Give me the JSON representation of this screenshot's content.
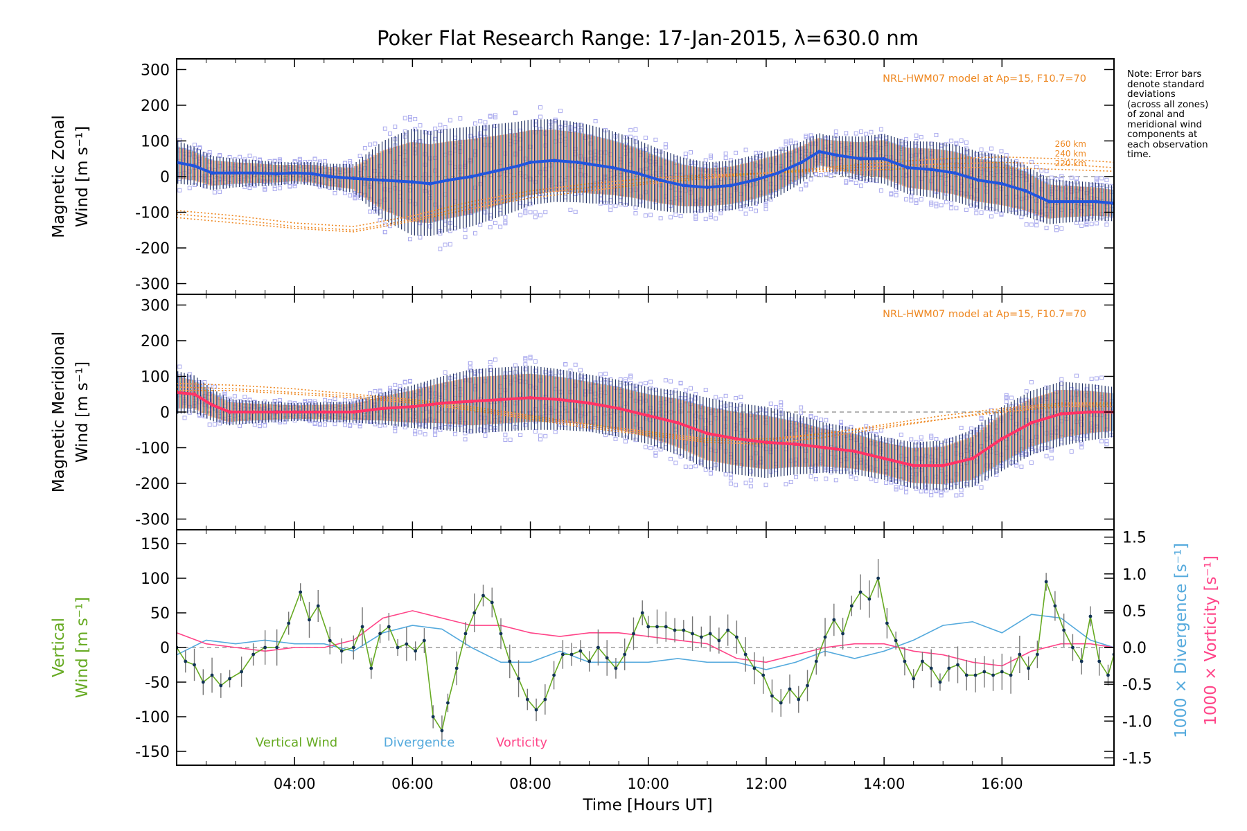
{
  "title": "Poker Flat Research Range: 17-Jan-2015, λ=630.0 nm",
  "note": [
    "Note: Error bars",
    "denote standard",
    "deviations",
    "(across all zones)",
    "of zonal and",
    "meridional wind",
    "components at",
    "each observation",
    "time."
  ],
  "xaxis": {
    "label": "Time [Hours UT]",
    "range_hours": [
      2.0,
      17.9
    ],
    "ticks": [
      {
        "v": 4,
        "label": "04:00"
      },
      {
        "v": 6,
        "label": "06:00"
      },
      {
        "v": 8,
        "label": "08:00"
      },
      {
        "v": 10,
        "label": "10:00"
      },
      {
        "v": 12,
        "label": "12:00"
      },
      {
        "v": 14,
        "label": "14:00"
      },
      {
        "v": 16,
        "label": "16:00"
      }
    ]
  },
  "colors": {
    "zonal": "#2255dd",
    "meridional": "#ff3366",
    "vertical": "#66aa22",
    "divergence": "#55aadd",
    "vorticity": "#ff4488",
    "hwm": "#ee8822",
    "raw_points": "#aaaaee",
    "errorbar": "#223366"
  },
  "chart_data": [
    {
      "type": "line",
      "panel": "zonal",
      "ylabel_lines": [
        "Magnetic Zonal",
        "Wind [m s⁻¹]"
      ],
      "ylim": [
        -330,
        330
      ],
      "yticks": [
        300,
        200,
        100,
        0,
        -100,
        -200,
        -300
      ],
      "hwm_label": "NRL-HWM07 model at Ap=15, F10.7=70",
      "hwm_alt_labels": [
        "260 km",
        "240 km",
        "220 km"
      ],
      "series": [
        {
          "role": "mean",
          "x": [
            2.0,
            2.3,
            2.6,
            2.9,
            3.3,
            3.7,
            4.0,
            4.3,
            4.6,
            5.0,
            5.5,
            6.0,
            6.3,
            6.6,
            7.0,
            7.4,
            7.8,
            8.0,
            8.4,
            8.8,
            9.0,
            9.4,
            9.8,
            10.2,
            10.6,
            11.0,
            11.4,
            11.8,
            12.2,
            12.6,
            12.9,
            13.2,
            13.6,
            14.0,
            14.4,
            14.8,
            15.2,
            15.6,
            16.0,
            16.4,
            16.8,
            17.2,
            17.6,
            17.9
          ],
          "y": [
            40,
            30,
            10,
            10,
            10,
            8,
            10,
            8,
            0,
            -5,
            -10,
            -15,
            -20,
            -10,
            0,
            15,
            30,
            40,
            45,
            40,
            35,
            25,
            10,
            -10,
            -25,
            -30,
            -25,
            -10,
            10,
            40,
            70,
            60,
            50,
            50,
            25,
            20,
            10,
            -10,
            -20,
            -40,
            -70,
            -70,
            -70,
            -75
          ]
        },
        {
          "role": "std_dev",
          "x": [
            2.0,
            3.0,
            4.0,
            5.0,
            5.5,
            6.0,
            7.0,
            8.0,
            9.0,
            10.0,
            11.0,
            12.0,
            13.0,
            14.0,
            15.0,
            16.0,
            17.0,
            17.9
          ],
          "sd": [
            60,
            40,
            30,
            40,
            110,
            150,
            140,
            120,
            110,
            90,
            70,
            70,
            50,
            70,
            80,
            80,
            60,
            50
          ]
        }
      ],
      "hwm_model": [
        {
          "altitude": "220 km",
          "x": [
            2,
            3,
            4,
            5,
            6,
            7,
            8,
            9,
            10,
            11,
            12,
            13,
            14,
            15,
            16,
            17,
            17.9
          ],
          "y": [
            -95,
            -110,
            -130,
            -140,
            -110,
            -70,
            -40,
            -20,
            -5,
            5,
            10,
            15,
            20,
            25,
            25,
            20,
            15
          ]
        },
        {
          "altitude": "240 km",
          "x": [
            2,
            3,
            4,
            5,
            6,
            7,
            8,
            9,
            10,
            11,
            12,
            13,
            14,
            15,
            16,
            17,
            17.9
          ],
          "y": [
            -105,
            -120,
            -140,
            -150,
            -120,
            -80,
            -50,
            -30,
            -15,
            0,
            10,
            20,
            30,
            35,
            40,
            35,
            25
          ]
        },
        {
          "altitude": "260 km",
          "x": [
            2,
            3,
            4,
            5,
            6,
            7,
            8,
            9,
            10,
            11,
            12,
            13,
            14,
            15,
            16,
            17,
            17.9
          ],
          "y": [
            -115,
            -130,
            -145,
            -155,
            -125,
            -90,
            -60,
            -40,
            -20,
            -5,
            10,
            25,
            40,
            50,
            55,
            50,
            40
          ]
        }
      ]
    },
    {
      "type": "line",
      "panel": "meridional",
      "ylabel_lines": [
        "Magnetic Meridional",
        "Wind [m s⁻¹]"
      ],
      "ylim": [
        -330,
        330
      ],
      "yticks": [
        300,
        200,
        100,
        0,
        -100,
        -200,
        -300
      ],
      "hwm_label": "NRL-HWM07 model at Ap=15, F10.7=70",
      "series": [
        {
          "role": "mean",
          "x": [
            2.0,
            2.3,
            2.6,
            2.9,
            3.3,
            3.7,
            4.0,
            4.5,
            5.0,
            5.5,
            6.0,
            6.5,
            7.0,
            7.5,
            8.0,
            8.5,
            9.0,
            9.5,
            10.0,
            10.5,
            11.0,
            11.5,
            12.0,
            12.5,
            13.0,
            13.5,
            14.0,
            14.5,
            15.0,
            15.5,
            16.0,
            16.5,
            17.0,
            17.5,
            17.9
          ],
          "y": [
            55,
            50,
            20,
            0,
            0,
            0,
            0,
            0,
            0,
            10,
            15,
            25,
            30,
            35,
            40,
            35,
            25,
            10,
            -10,
            -30,
            -60,
            -75,
            -85,
            -90,
            -100,
            -110,
            -130,
            -150,
            -150,
            -130,
            -75,
            -30,
            -5,
            0,
            0
          ]
        },
        {
          "role": "std_dev",
          "x": [
            2.0,
            3.0,
            4.0,
            5.0,
            6.0,
            7.0,
            8.0,
            9.0,
            10.0,
            11.0,
            12.0,
            13.0,
            14.0,
            15.0,
            16.0,
            17.0,
            17.9
          ],
          "sd": [
            60,
            35,
            25,
            30,
            60,
            90,
            90,
            80,
            80,
            100,
            100,
            70,
            60,
            70,
            90,
            90,
            70
          ]
        }
      ],
      "hwm_model": [
        {
          "altitude": "220 km",
          "x": [
            2,
            3,
            4,
            5,
            6,
            7,
            8,
            9,
            10,
            11,
            12,
            13,
            14,
            15,
            16,
            17,
            17.9
          ],
          "y": [
            70,
            65,
            55,
            45,
            30,
            10,
            -15,
            -40,
            -60,
            -80,
            -80,
            -60,
            -40,
            -20,
            0,
            15,
            15
          ]
        },
        {
          "altitude": "240 km",
          "x": [
            2,
            3,
            4,
            5,
            6,
            7,
            8,
            9,
            10,
            11,
            12,
            13,
            14,
            15,
            16,
            17,
            17.9
          ],
          "y": [
            80,
            75,
            65,
            50,
            35,
            15,
            -10,
            -35,
            -55,
            -75,
            -75,
            -60,
            -35,
            -10,
            10,
            25,
            25
          ]
        },
        {
          "altitude": "260 km",
          "x": [
            2,
            3,
            4,
            5,
            6,
            7,
            8,
            9,
            10,
            11,
            12,
            13,
            14,
            15,
            16,
            17,
            17.9
          ],
          "y": [
            60,
            60,
            50,
            40,
            25,
            5,
            -20,
            -45,
            -65,
            -85,
            -90,
            -70,
            -45,
            -20,
            5,
            20,
            20
          ]
        }
      ]
    },
    {
      "type": "line",
      "panel": "vertical",
      "ylabel_left": [
        "Vertical",
        "Wind [m s⁻¹]"
      ],
      "ylabel_right": [
        "1000 × Divergence [s⁻¹]",
        "1000 × Vorticity [s⁻¹]"
      ],
      "ylim": [
        -170,
        170
      ],
      "yticks": [
        150,
        100,
        50,
        0,
        -50,
        -100,
        -150
      ],
      "y2lim": [
        -1.6,
        1.6
      ],
      "y2ticks": [
        {
          "v": 1.5,
          "label": "1.5"
        },
        {
          "v": 1.0,
          "label": "1.0"
        },
        {
          "v": 0.5,
          "label": "0.5"
        },
        {
          "v": 0.0,
          "label": "0.0"
        },
        {
          "v": -0.5,
          "label": "-0.5"
        },
        {
          "v": -1.0,
          "label": "-1.0"
        },
        {
          "v": -1.5,
          "label": "-1.5"
        }
      ],
      "legend": [
        "Vertical Wind",
        "Divergence",
        "Vorticity"
      ],
      "series": [
        {
          "name": "Vertical Wind",
          "axis": "left",
          "x": [
            2.0,
            2.15,
            2.3,
            2.45,
            2.6,
            2.75,
            2.9,
            3.1,
            3.3,
            3.5,
            3.7,
            3.9,
            4.1,
            4.25,
            4.4,
            4.6,
            4.8,
            5.0,
            5.15,
            5.3,
            5.45,
            5.6,
            5.75,
            5.9,
            6.05,
            6.2,
            6.35,
            6.5,
            6.6,
            6.75,
            6.9,
            7.05,
            7.2,
            7.35,
            7.5,
            7.65,
            7.8,
            7.95,
            8.1,
            8.25,
            8.4,
            8.55,
            8.7,
            8.85,
            9.0,
            9.15,
            9.3,
            9.45,
            9.6,
            9.75,
            9.9,
            10.0,
            10.15,
            10.3,
            10.45,
            10.6,
            10.75,
            10.9,
            11.05,
            11.2,
            11.35,
            11.5,
            11.65,
            11.8,
            11.95,
            12.1,
            12.25,
            12.4,
            12.55,
            12.7,
            12.85,
            13.0,
            13.15,
            13.3,
            13.45,
            13.6,
            13.75,
            13.9,
            14.05,
            14.2,
            14.35,
            14.5,
            14.65,
            14.8,
            14.95,
            15.1,
            15.25,
            15.4,
            15.55,
            15.7,
            15.85,
            16.0,
            16.15,
            16.3,
            16.45,
            16.6,
            16.75,
            16.9,
            17.05,
            17.2,
            17.35,
            17.5,
            17.65,
            17.8,
            17.9
          ],
          "y": [
            0,
            -20,
            -25,
            -50,
            -40,
            -55,
            -45,
            -35,
            -10,
            0,
            0,
            35,
            80,
            40,
            60,
            10,
            -5,
            0,
            30,
            -30,
            20,
            30,
            0,
            5,
            -5,
            10,
            -100,
            -120,
            -80,
            -30,
            20,
            50,
            75,
            65,
            20,
            -20,
            -45,
            -75,
            -90,
            -75,
            -40,
            -10,
            -10,
            -5,
            -20,
            0,
            -15,
            -30,
            -10,
            20,
            50,
            30,
            30,
            30,
            25,
            25,
            20,
            15,
            20,
            10,
            25,
            15,
            -10,
            -30,
            -40,
            -70,
            -80,
            -60,
            -75,
            -55,
            -20,
            15,
            40,
            20,
            60,
            80,
            70,
            100,
            35,
            10,
            -20,
            -45,
            -20,
            -30,
            -50,
            -30,
            -25,
            -40,
            -40,
            -35,
            -40,
            -35,
            -40,
            -10,
            -30,
            -10,
            95,
            60,
            25,
            0,
            -20,
            45,
            -20,
            -40,
            -10
          ]
        },
        {
          "name": "Divergence",
          "axis": "right",
          "x": [
            2.0,
            2.5,
            3.0,
            3.5,
            4.0,
            4.5,
            5.0,
            5.5,
            6.0,
            6.5,
            7.0,
            7.5,
            8.0,
            8.5,
            9.0,
            9.5,
            10.0,
            10.5,
            11.0,
            11.5,
            12.0,
            12.5,
            13.0,
            13.5,
            14.0,
            14.5,
            15.0,
            15.5,
            16.0,
            16.5,
            17.0,
            17.5,
            17.9
          ],
          "y": [
            -0.1,
            0.1,
            0.05,
            0.1,
            0.05,
            0.05,
            -0.05,
            0.2,
            0.3,
            0.25,
            0.0,
            -0.2,
            -0.2,
            -0.05,
            -0.2,
            -0.2,
            -0.2,
            -0.15,
            -0.2,
            -0.2,
            -0.3,
            -0.2,
            -0.05,
            -0.15,
            -0.05,
            0.1,
            0.3,
            0.35,
            0.2,
            0.45,
            0.4,
            0.1,
            0.0
          ]
        },
        {
          "name": "Vorticity",
          "axis": "right",
          "x": [
            2.0,
            2.5,
            3.0,
            3.5,
            4.0,
            4.5,
            5.0,
            5.5,
            6.0,
            6.5,
            7.0,
            7.5,
            8.0,
            8.5,
            9.0,
            9.5,
            10.0,
            10.5,
            11.0,
            11.5,
            12.0,
            12.5,
            13.0,
            13.5,
            14.0,
            14.5,
            15.0,
            15.5,
            16.0,
            16.5,
            17.0,
            17.5,
            17.9
          ],
          "y": [
            0.2,
            0.05,
            0.0,
            -0.05,
            0.0,
            0.0,
            0.1,
            0.4,
            0.5,
            0.4,
            0.3,
            0.3,
            0.2,
            0.15,
            0.2,
            0.2,
            0.15,
            0.1,
            0.05,
            -0.15,
            -0.2,
            -0.1,
            0.0,
            0.05,
            0.05,
            -0.05,
            -0.1,
            -0.2,
            -0.25,
            -0.05,
            0.05,
            0.05,
            0.0
          ]
        }
      ]
    }
  ]
}
